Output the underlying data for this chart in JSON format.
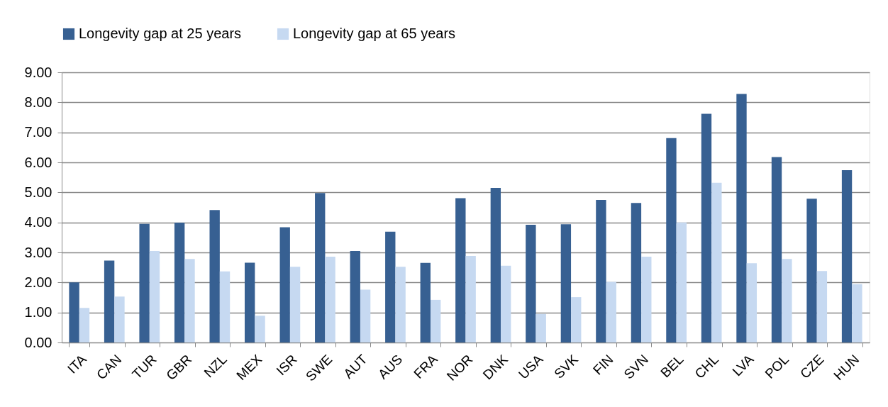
{
  "chart_data": {
    "type": "bar",
    "categories": [
      "ITA",
      "CAN",
      "TUR",
      "GBR",
      "NZL",
      "MEX",
      "ISR",
      "SWE",
      "AUT",
      "AUS",
      "FRA",
      "NOR",
      "DNK",
      "USA",
      "SVK",
      "FIN",
      "SVN",
      "BEL",
      "CHL",
      "LVA",
      "POL",
      "CZE",
      "HUN"
    ],
    "series": [
      {
        "name": "Longevity gap at 25 years",
        "color": "#376092",
        "values": [
          2.0,
          2.73,
          3.95,
          3.99,
          4.41,
          2.66,
          3.84,
          4.98,
          3.05,
          3.69,
          2.65,
          4.81,
          5.15,
          3.92,
          3.94,
          4.75,
          4.65,
          6.81,
          7.62,
          8.28,
          6.18,
          4.79,
          5.74
        ]
      },
      {
        "name": "Longevity gap at 65 years",
        "color": "#c6d9f1",
        "values": [
          1.15,
          1.53,
          3.05,
          2.78,
          2.37,
          0.89,
          2.52,
          2.86,
          1.76,
          2.52,
          1.42,
          2.88,
          2.56,
          0.95,
          1.51,
          2.02,
          2.86,
          4.0,
          5.32,
          2.64,
          2.78,
          2.38,
          1.94
        ]
      }
    ],
    "ylim": [
      0,
      9
    ],
    "yticks": [
      {
        "value": 0,
        "label": "0.00"
      },
      {
        "value": 1,
        "label": "1.00"
      },
      {
        "value": 2,
        "label": "2.00"
      },
      {
        "value": 3,
        "label": "3.00"
      },
      {
        "value": 4,
        "label": "4.00"
      },
      {
        "value": 5,
        "label": "5.00"
      },
      {
        "value": 6,
        "label": "6.00"
      },
      {
        "value": 7,
        "label": "7.00"
      },
      {
        "value": 8,
        "label": "8.00"
      },
      {
        "value": 9,
        "label": "9.00"
      }
    ],
    "grid": "y",
    "legend": "top"
  }
}
